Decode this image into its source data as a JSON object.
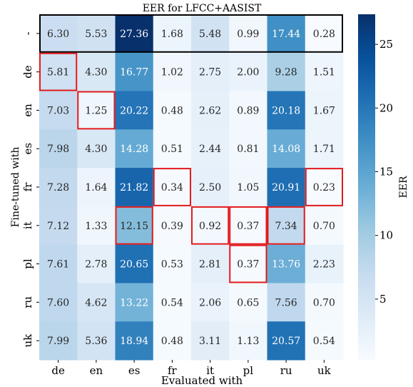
{
  "chart_data": {
    "type": "heatmap",
    "title": "EER for LFCC+AASIST",
    "xlabel": "Evaluated with",
    "ylabel": "Fine-tuned with",
    "x_categories": [
      "de",
      "en",
      "es",
      "fr",
      "it",
      "pl",
      "ru",
      "uk"
    ],
    "y_categories": [
      "-",
      "de",
      "en",
      "es",
      "fr",
      "it",
      "pl",
      "ru",
      "uk"
    ],
    "values": [
      [
        6.3,
        5.53,
        27.36,
        1.68,
        5.48,
        0.99,
        17.44,
        0.28
      ],
      [
        5.81,
        4.3,
        16.77,
        1.02,
        2.75,
        2.0,
        9.28,
        1.51
      ],
      [
        7.03,
        1.25,
        20.22,
        0.48,
        2.62,
        0.89,
        20.18,
        1.67
      ],
      [
        7.98,
        4.3,
        14.28,
        0.51,
        2.44,
        0.81,
        14.08,
        1.71
      ],
      [
        7.28,
        1.64,
        21.82,
        0.34,
        2.5,
        1.05,
        20.91,
        0.23
      ],
      [
        7.12,
        1.33,
        12.15,
        0.39,
        0.92,
        0.37,
        7.34,
        0.7
      ],
      [
        7.61,
        2.78,
        20.65,
        0.53,
        2.81,
        0.37,
        13.76,
        2.23
      ],
      [
        7.6,
        4.62,
        13.22,
        0.54,
        2.06,
        0.65,
        7.56,
        0.7
      ],
      [
        7.99,
        5.36,
        18.94,
        0.48,
        3.11,
        1.13,
        20.57,
        0.54
      ]
    ],
    "colorbar": {
      "label": "EER",
      "ticks": [
        "5",
        "10",
        "15",
        "20",
        "25"
      ],
      "range": [
        0.23,
        27.36
      ],
      "colormap": "Blues"
    },
    "highlight_row": 0,
    "highlighted_cells": [
      [
        1,
        0
      ],
      [
        2,
        1
      ],
      [
        4,
        3
      ],
      [
        4,
        7
      ],
      [
        5,
        2
      ],
      [
        5,
        4
      ],
      [
        5,
        5
      ],
      [
        5,
        6
      ],
      [
        6,
        5
      ]
    ],
    "colors": {
      "highlight_row_border": "#000000",
      "highlight_cell_border": "#e31a1c"
    }
  }
}
